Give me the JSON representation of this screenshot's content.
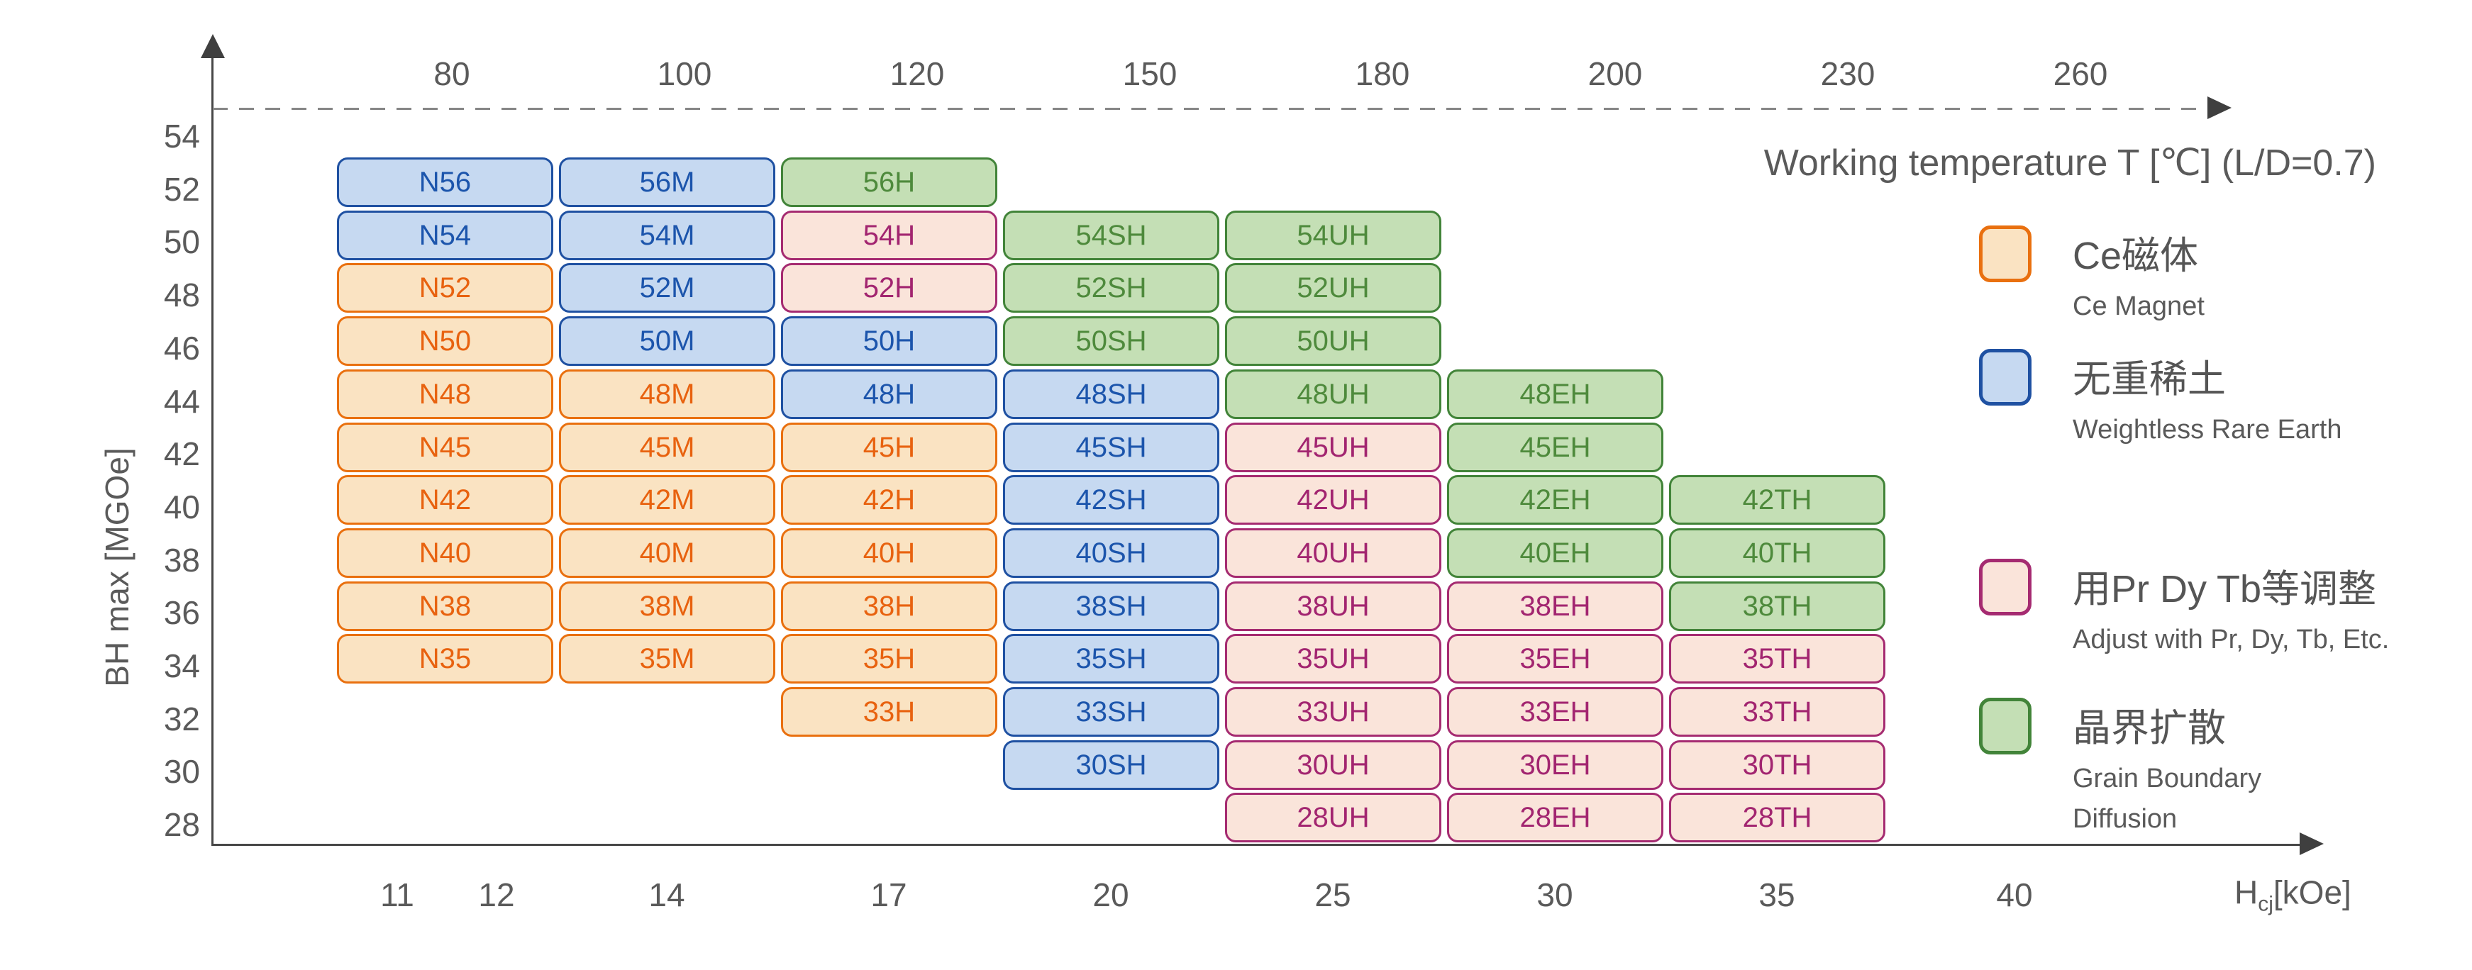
{
  "chart_data": {
    "type": "heatmap",
    "top_axis": {
      "label": "Working temperature T [℃] (L/D=0.7)",
      "ticks": [
        80,
        100,
        120,
        150,
        180,
        200,
        230,
        260
      ]
    },
    "x_axis": {
      "label": "Hcj[kOe]",
      "label_main": "H",
      "label_sub": "cj",
      "label_unit": "[kOe]",
      "ticks": [
        11,
        12,
        14,
        17,
        20,
        25,
        30,
        35,
        40
      ]
    },
    "y_axis": {
      "label": "BH max [MGOe]",
      "range": [
        28,
        54
      ],
      "ticks": [
        54,
        52,
        50,
        48,
        46,
        44,
        42,
        40,
        38,
        36,
        34,
        32,
        30,
        28
      ]
    },
    "row_grades": [
      56,
      54,
      52,
      50,
      48,
      45,
      42,
      40,
      38,
      35,
      33,
      30,
      28
    ],
    "categories": {
      "ce": {
        "zh": "Ce磁体",
        "en": "Ce Magnet",
        "fill": "#fae3c2",
        "border": "#e9700f",
        "text": "#e8620f"
      },
      "wre": {
        "zh": "无重稀土",
        "en": "Weightless Rare Earth",
        "fill": "#c6d9f1",
        "border": "#1f51a2",
        "text": "#1c55ac"
      },
      "adj": {
        "zh": "用Pr Dy Tb等调整",
        "en": "Adjust with Pr, Dy, Tb, Etc.",
        "fill": "#fae4da",
        "border": "#a52b71",
        "text": "#a22570"
      },
      "gbd": {
        "zh": "晶界扩散",
        "en": "Grain Boundary\nDiffusion",
        "fill": "#c4dfb5",
        "border": "#428439",
        "text": "#4e8a3c"
      }
    },
    "series": [
      {
        "suffix": "N",
        "working_temp": 80,
        "cells": [
          {
            "grade": 56,
            "label": "N56",
            "cat": "wre"
          },
          {
            "grade": 54,
            "label": "N54",
            "cat": "wre"
          },
          {
            "grade": 52,
            "label": "N52",
            "cat": "ce"
          },
          {
            "grade": 50,
            "label": "N50",
            "cat": "ce"
          },
          {
            "grade": 48,
            "label": "N48",
            "cat": "ce"
          },
          {
            "grade": 45,
            "label": "N45",
            "cat": "ce"
          },
          {
            "grade": 42,
            "label": "N42",
            "cat": "ce"
          },
          {
            "grade": 40,
            "label": "N40",
            "cat": "ce"
          },
          {
            "grade": 38,
            "label": "N38",
            "cat": "ce"
          },
          {
            "grade": 35,
            "label": "N35",
            "cat": "ce"
          }
        ]
      },
      {
        "suffix": "M",
        "working_temp": 100,
        "cells": [
          {
            "grade": 56,
            "label": "56M",
            "cat": "wre"
          },
          {
            "grade": 54,
            "label": "54M",
            "cat": "wre"
          },
          {
            "grade": 52,
            "label": "52M",
            "cat": "wre"
          },
          {
            "grade": 50,
            "label": "50M",
            "cat": "wre"
          },
          {
            "grade": 48,
            "label": "48M",
            "cat": "ce"
          },
          {
            "grade": 45,
            "label": "45M",
            "cat": "ce"
          },
          {
            "grade": 42,
            "label": "42M",
            "cat": "ce"
          },
          {
            "grade": 40,
            "label": "40M",
            "cat": "ce"
          },
          {
            "grade": 38,
            "label": "38M",
            "cat": "ce"
          },
          {
            "grade": 35,
            "label": "35M",
            "cat": "ce"
          }
        ]
      },
      {
        "suffix": "H",
        "working_temp": 120,
        "cells": [
          {
            "grade": 56,
            "label": "56H",
            "cat": "gbd"
          },
          {
            "grade": 54,
            "label": "54H",
            "cat": "adj"
          },
          {
            "grade": 52,
            "label": "52H",
            "cat": "adj"
          },
          {
            "grade": 50,
            "label": "50H",
            "cat": "wre"
          },
          {
            "grade": 48,
            "label": "48H",
            "cat": "wre"
          },
          {
            "grade": 45,
            "label": "45H",
            "cat": "ce"
          },
          {
            "grade": 42,
            "label": "42H",
            "cat": "ce"
          },
          {
            "grade": 40,
            "label": "40H",
            "cat": "ce"
          },
          {
            "grade": 38,
            "label": "38H",
            "cat": "ce"
          },
          {
            "grade": 35,
            "label": "35H",
            "cat": "ce"
          },
          {
            "grade": 33,
            "label": "33H",
            "cat": "ce"
          }
        ]
      },
      {
        "suffix": "SH",
        "working_temp": 150,
        "cells": [
          {
            "grade": 54,
            "label": "54SH",
            "cat": "gbd"
          },
          {
            "grade": 52,
            "label": "52SH",
            "cat": "gbd"
          },
          {
            "grade": 50,
            "label": "50SH",
            "cat": "gbd"
          },
          {
            "grade": 48,
            "label": "48SH",
            "cat": "wre"
          },
          {
            "grade": 45,
            "label": "45SH",
            "cat": "wre"
          },
          {
            "grade": 42,
            "label": "42SH",
            "cat": "wre"
          },
          {
            "grade": 40,
            "label": "40SH",
            "cat": "wre"
          },
          {
            "grade": 38,
            "label": "38SH",
            "cat": "wre"
          },
          {
            "grade": 35,
            "label": "35SH",
            "cat": "wre"
          },
          {
            "grade": 33,
            "label": "33SH",
            "cat": "wre"
          },
          {
            "grade": 30,
            "label": "30SH",
            "cat": "wre"
          }
        ]
      },
      {
        "suffix": "UH",
        "working_temp": 180,
        "cells": [
          {
            "grade": 54,
            "label": "54UH",
            "cat": "gbd"
          },
          {
            "grade": 52,
            "label": "52UH",
            "cat": "gbd"
          },
          {
            "grade": 50,
            "label": "50UH",
            "cat": "gbd"
          },
          {
            "grade": 48,
            "label": "48UH",
            "cat": "gbd"
          },
          {
            "grade": 45,
            "label": "45UH",
            "cat": "adj"
          },
          {
            "grade": 42,
            "label": "42UH",
            "cat": "adj"
          },
          {
            "grade": 40,
            "label": "40UH",
            "cat": "adj"
          },
          {
            "grade": 38,
            "label": "38UH",
            "cat": "adj"
          },
          {
            "grade": 35,
            "label": "35UH",
            "cat": "adj"
          },
          {
            "grade": 33,
            "label": "33UH",
            "cat": "adj"
          },
          {
            "grade": 30,
            "label": "30UH",
            "cat": "adj"
          },
          {
            "grade": 28,
            "label": "28UH",
            "cat": "adj"
          }
        ]
      },
      {
        "suffix": "EH",
        "working_temp": 200,
        "cells": [
          {
            "grade": 48,
            "label": "48EH",
            "cat": "gbd"
          },
          {
            "grade": 45,
            "label": "45EH",
            "cat": "gbd"
          },
          {
            "grade": 42,
            "label": "42EH",
            "cat": "gbd"
          },
          {
            "grade": 40,
            "label": "40EH",
            "cat": "gbd"
          },
          {
            "grade": 38,
            "label": "38EH",
            "cat": "adj"
          },
          {
            "grade": 35,
            "label": "35EH",
            "cat": "adj"
          },
          {
            "grade": 33,
            "label": "33EH",
            "cat": "adj"
          },
          {
            "grade": 30,
            "label": "30EH",
            "cat": "adj"
          },
          {
            "grade": 28,
            "label": "28EH",
            "cat": "adj"
          }
        ]
      },
      {
        "suffix": "TH",
        "working_temp": 230,
        "cells": [
          {
            "grade": 42,
            "label": "42TH",
            "cat": "gbd"
          },
          {
            "grade": 40,
            "label": "40TH",
            "cat": "gbd"
          },
          {
            "grade": 38,
            "label": "38TH",
            "cat": "gbd"
          },
          {
            "grade": 35,
            "label": "35TH",
            "cat": "adj"
          },
          {
            "grade": 33,
            "label": "33TH",
            "cat": "adj"
          },
          {
            "grade": 30,
            "label": "30TH",
            "cat": "adj"
          },
          {
            "grade": 28,
            "label": "28TH",
            "cat": "adj"
          }
        ]
      }
    ]
  }
}
